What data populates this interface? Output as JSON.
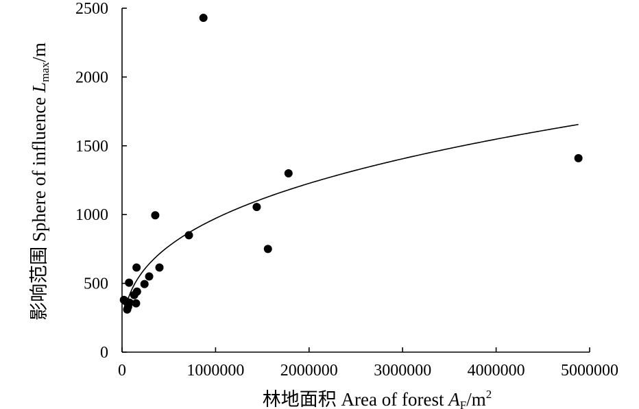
{
  "chart_data": {
    "type": "scatter",
    "title": "",
    "xlabel": {
      "prefix": "林地面积 Area of forest ",
      "var": "A",
      "sub": "F",
      "unit": "/m",
      "sup": "2"
    },
    "ylabel": {
      "prefix": "影响范围 Sphere of influence ",
      "var": "L",
      "sub": "max",
      "unit": "/m"
    },
    "xlim": [
      0,
      5000000
    ],
    "ylim": [
      0,
      2500
    ],
    "x_ticks": [
      {
        "value": 0,
        "label": "0"
      },
      {
        "value": 1000000,
        "label": "1000000"
      },
      {
        "value": 2000000,
        "label": "2000000"
      },
      {
        "value": 3000000,
        "label": "3000000"
      },
      {
        "value": 4000000,
        "label": "4000000"
      },
      {
        "value": 5000000,
        "label": "5000000"
      }
    ],
    "y_ticks": [
      {
        "value": 0,
        "label": "0"
      },
      {
        "value": 500,
        "label": "500"
      },
      {
        "value": 1000,
        "label": "1000"
      },
      {
        "value": 1500,
        "label": "1500"
      },
      {
        "value": 2000,
        "label": "2000"
      },
      {
        "value": 2500,
        "label": "2500"
      }
    ],
    "grid": false,
    "legend": "none",
    "points": [
      {
        "x": 20000,
        "y": 380
      },
      {
        "x": 40000,
        "y": 370
      },
      {
        "x": 55000,
        "y": 310
      },
      {
        "x": 65000,
        "y": 330
      },
      {
        "x": 80000,
        "y": 360
      },
      {
        "x": 75000,
        "y": 505
      },
      {
        "x": 130000,
        "y": 415
      },
      {
        "x": 150000,
        "y": 355
      },
      {
        "x": 160000,
        "y": 440
      },
      {
        "x": 155000,
        "y": 615
      },
      {
        "x": 240000,
        "y": 495
      },
      {
        "x": 290000,
        "y": 550
      },
      {
        "x": 355000,
        "y": 995
      },
      {
        "x": 400000,
        "y": 615
      },
      {
        "x": 715000,
        "y": 850
      },
      {
        "x": 870000,
        "y": 2430
      },
      {
        "x": 1440000,
        "y": 1055
      },
      {
        "x": 1560000,
        "y": 750
      },
      {
        "x": 1780000,
        "y": 1300
      },
      {
        "x": 4880000,
        "y": 1410
      }
    ],
    "trendline": {
      "type": "power",
      "x_range": [
        40000,
        4880000
      ],
      "samples": [
        {
          "x": 40000,
          "y": 330
        },
        {
          "x": 100000,
          "y": 465
        },
        {
          "x": 200000,
          "y": 590
        },
        {
          "x": 500000,
          "y": 790
        },
        {
          "x": 1000000,
          "y": 960
        },
        {
          "x": 2000000,
          "y": 1210
        },
        {
          "x": 3000000,
          "y": 1400
        },
        {
          "x": 4000000,
          "y": 1545
        },
        {
          "x": 4880000,
          "y": 1655
        }
      ]
    }
  }
}
